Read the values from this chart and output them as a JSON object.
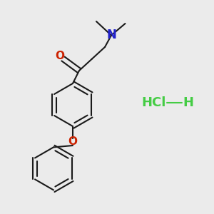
{
  "background_color": "#ebebeb",
  "line_color": "#1a1a1a",
  "nitrogen_color": "#2222cc",
  "oxygen_color": "#cc2200",
  "hcl_color": "#44cc44",
  "line_width": 1.5,
  "figsize": [
    3.0,
    3.0
  ],
  "dpi": 100,
  "xlim": [
    0,
    10
  ],
  "ylim": [
    0,
    10
  ]
}
